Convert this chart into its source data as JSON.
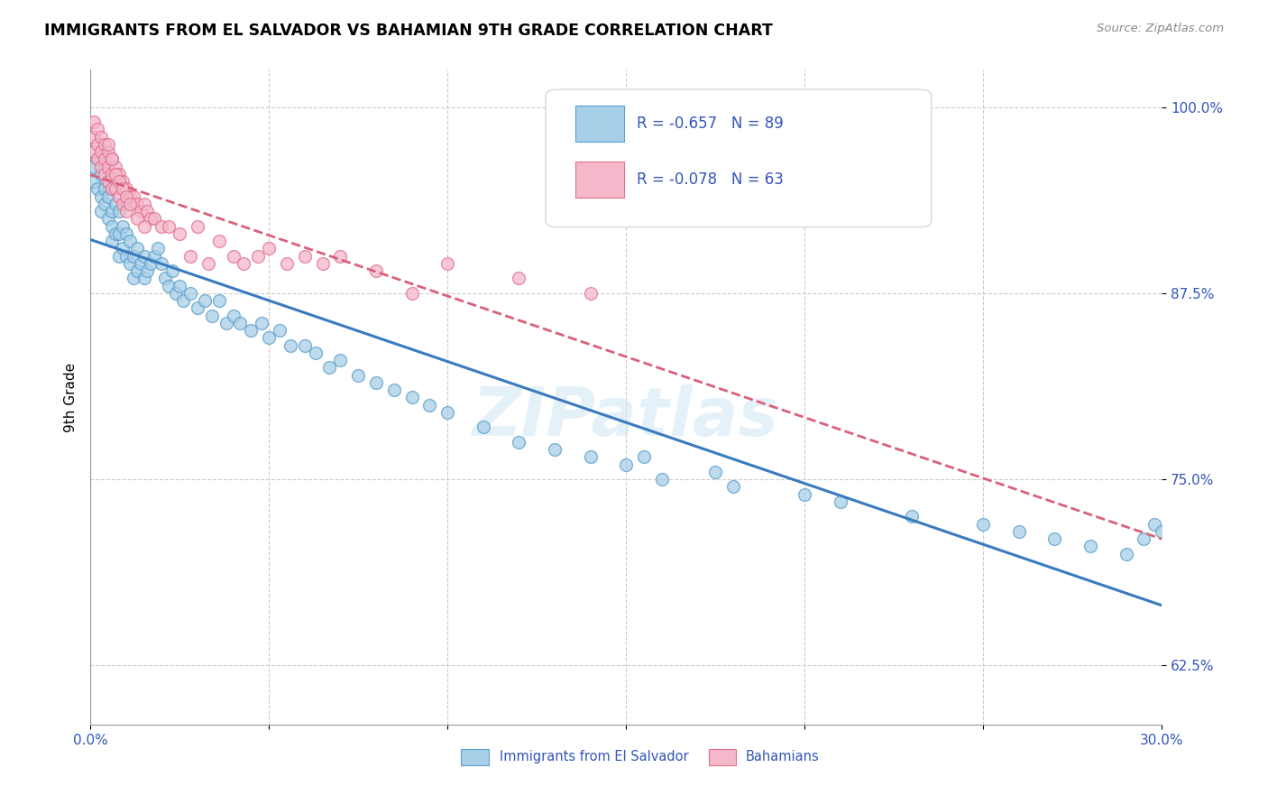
{
  "title": "IMMIGRANTS FROM EL SALVADOR VS BAHAMIAN 9TH GRADE CORRELATION CHART",
  "source": "Source: ZipAtlas.com",
  "ylabel": "9th Grade",
  "ytick_vals": [
    0.625,
    0.75,
    0.875,
    1.0
  ],
  "ytick_labels": [
    "62.5%",
    "75.0%",
    "87.5%",
    "100.0%"
  ],
  "xlim": [
    0.0,
    0.3
  ],
  "ylim": [
    0.585,
    1.025
  ],
  "color_blue": "#a8cfe8",
  "color_pink": "#f5b8cb",
  "edge_blue": "#5b9ec9",
  "edge_pink": "#e0708a",
  "line_blue": "#3a7bbf",
  "line_pink": "#d9607a",
  "watermark": "ZIPatlas",
  "legend_r1": "R = -0.657",
  "legend_n1": "N = 89",
  "legend_r2": "R = -0.078",
  "legend_n2": "N = 63",
  "blue_x": [
    0.001,
    0.001,
    0.002,
    0.002,
    0.003,
    0.003,
    0.003,
    0.004,
    0.004,
    0.004,
    0.005,
    0.005,
    0.005,
    0.006,
    0.006,
    0.006,
    0.006,
    0.007,
    0.007,
    0.008,
    0.008,
    0.008,
    0.009,
    0.009,
    0.01,
    0.01,
    0.011,
    0.011,
    0.012,
    0.012,
    0.013,
    0.013,
    0.014,
    0.015,
    0.015,
    0.016,
    0.017,
    0.018,
    0.019,
    0.02,
    0.021,
    0.022,
    0.023,
    0.024,
    0.025,
    0.026,
    0.028,
    0.03,
    0.032,
    0.034,
    0.036,
    0.038,
    0.04,
    0.042,
    0.045,
    0.048,
    0.05,
    0.053,
    0.056,
    0.06,
    0.063,
    0.067,
    0.07,
    0.075,
    0.08,
    0.085,
    0.09,
    0.095,
    0.1,
    0.11,
    0.12,
    0.13,
    0.14,
    0.15,
    0.16,
    0.18,
    0.2,
    0.21,
    0.23,
    0.25,
    0.26,
    0.27,
    0.28,
    0.29,
    0.295,
    0.298,
    0.3,
    0.155,
    0.175
  ],
  "blue_y": [
    0.96,
    0.95,
    0.965,
    0.945,
    0.955,
    0.94,
    0.93,
    0.96,
    0.945,
    0.935,
    0.95,
    0.94,
    0.925,
    0.945,
    0.93,
    0.92,
    0.91,
    0.935,
    0.915,
    0.93,
    0.915,
    0.9,
    0.92,
    0.905,
    0.915,
    0.9,
    0.91,
    0.895,
    0.9,
    0.885,
    0.905,
    0.89,
    0.895,
    0.9,
    0.885,
    0.89,
    0.895,
    0.9,
    0.905,
    0.895,
    0.885,
    0.88,
    0.89,
    0.875,
    0.88,
    0.87,
    0.875,
    0.865,
    0.87,
    0.86,
    0.87,
    0.855,
    0.86,
    0.855,
    0.85,
    0.855,
    0.845,
    0.85,
    0.84,
    0.84,
    0.835,
    0.825,
    0.83,
    0.82,
    0.815,
    0.81,
    0.805,
    0.8,
    0.795,
    0.785,
    0.775,
    0.77,
    0.765,
    0.76,
    0.75,
    0.745,
    0.74,
    0.735,
    0.725,
    0.72,
    0.715,
    0.71,
    0.705,
    0.7,
    0.71,
    0.72,
    0.715,
    0.765,
    0.755
  ],
  "pink_x": [
    0.001,
    0.001,
    0.001,
    0.002,
    0.002,
    0.002,
    0.003,
    0.003,
    0.003,
    0.004,
    0.004,
    0.004,
    0.005,
    0.005,
    0.005,
    0.006,
    0.006,
    0.006,
    0.007,
    0.007,
    0.008,
    0.008,
    0.009,
    0.009,
    0.01,
    0.01,
    0.011,
    0.012,
    0.013,
    0.014,
    0.015,
    0.016,
    0.017,
    0.018,
    0.02,
    0.022,
    0.025,
    0.028,
    0.03,
    0.033,
    0.036,
    0.04,
    0.043,
    0.047,
    0.05,
    0.055,
    0.06,
    0.065,
    0.07,
    0.08,
    0.09,
    0.1,
    0.12,
    0.14,
    0.005,
    0.006,
    0.007,
    0.008,
    0.009,
    0.01,
    0.011,
    0.013,
    0.015
  ],
  "pink_y": [
    0.99,
    0.98,
    0.97,
    0.985,
    0.975,
    0.965,
    0.98,
    0.97,
    0.96,
    0.975,
    0.965,
    0.955,
    0.97,
    0.96,
    0.95,
    0.965,
    0.955,
    0.945,
    0.96,
    0.945,
    0.955,
    0.94,
    0.95,
    0.935,
    0.945,
    0.93,
    0.94,
    0.94,
    0.935,
    0.93,
    0.935,
    0.93,
    0.925,
    0.925,
    0.92,
    0.92,
    0.915,
    0.9,
    0.92,
    0.895,
    0.91,
    0.9,
    0.895,
    0.9,
    0.905,
    0.895,
    0.9,
    0.895,
    0.9,
    0.89,
    0.875,
    0.895,
    0.885,
    0.875,
    0.975,
    0.965,
    0.955,
    0.95,
    0.945,
    0.94,
    0.935,
    0.925,
    0.92
  ]
}
